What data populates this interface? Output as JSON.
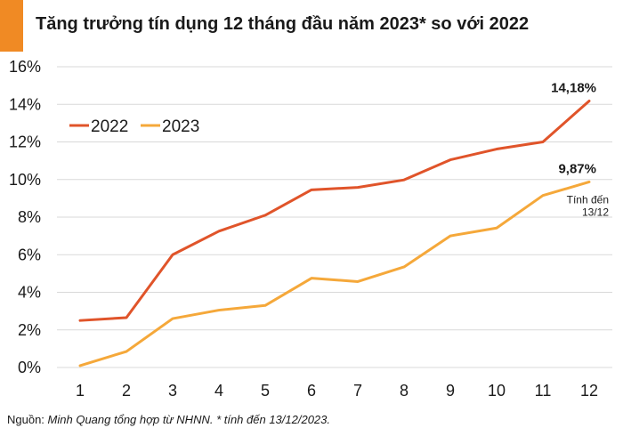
{
  "title": "Tăng trưởng tín dụng 12 tháng đầu năm 2023* so với 2022",
  "footer": {
    "prefix": "Nguồn: ",
    "text": "Minh Quang tổng hợp từ NHNN. * tính đến 13/12/2023."
  },
  "chart_data": {
    "type": "line",
    "title": "Tăng trưởng tín dụng 12 tháng đầu năm 2023* so với 2022",
    "x": [
      1,
      2,
      3,
      4,
      5,
      6,
      7,
      8,
      9,
      10,
      11,
      12
    ],
    "x_tick_labels": [
      "1",
      "2",
      "3",
      "4",
      "5",
      "6",
      "7",
      "8",
      "9",
      "10",
      "11",
      "12"
    ],
    "ylim": [
      0,
      16
    ],
    "y_ticks": [
      0,
      2,
      4,
      6,
      8,
      10,
      12,
      14,
      16
    ],
    "y_tick_labels": [
      "0%",
      "2%",
      "4%",
      "6%",
      "8%",
      "10%",
      "12%",
      "14%",
      "16%"
    ],
    "grid": true,
    "legend_position": "top-left",
    "series": [
      {
        "name": "2022",
        "color": "#e0542a",
        "values": [
          2.5,
          2.65,
          6.0,
          7.25,
          8.1,
          9.45,
          9.58,
          9.98,
          11.05,
          11.62,
          12.0,
          14.18
        ],
        "end_label": "14,18%"
      },
      {
        "name": "2023",
        "color": "#f5a83a",
        "values": [
          0.1,
          0.85,
          2.6,
          3.05,
          3.3,
          4.75,
          4.57,
          5.35,
          7.0,
          7.42,
          9.15,
          9.87
        ],
        "end_label": "9,87%",
        "note_lines": [
          "Tính đến",
          "13/12"
        ]
      }
    ]
  }
}
